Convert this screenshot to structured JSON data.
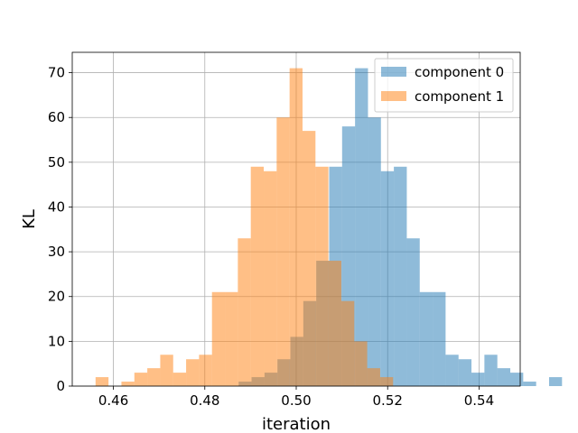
{
  "chart_data": {
    "type": "histogram",
    "title": "",
    "xlabel": "iteration",
    "ylabel": "KL",
    "xlim": [
      0.451,
      0.549
    ],
    "ylim": [
      0,
      74.55
    ],
    "x_ticks": [
      0.46,
      0.48,
      0.5,
      0.52,
      0.54
    ],
    "x_tick_labels": [
      "0.46",
      "0.48",
      "0.50",
      "0.52",
      "0.54"
    ],
    "y_ticks": [
      0,
      10,
      20,
      30,
      40,
      50,
      60,
      70
    ],
    "y_tick_labels": [
      "0",
      "10",
      "20",
      "30",
      "40",
      "50",
      "60",
      "70"
    ],
    "grid": true,
    "legend_position": "top-right",
    "series": [
      {
        "name": "component 0",
        "color": "#1f77b4",
        "alpha": 0.5,
        "bin_start": 0.4874,
        "bin_width": 0.00283,
        "counts": [
          1,
          2,
          3,
          6,
          11,
          19,
          28,
          49,
          58,
          71,
          60,
          48,
          49,
          33,
          21,
          21,
          7,
          6,
          3,
          7,
          4,
          3,
          1,
          0,
          2
        ]
      },
      {
        "name": "component 1",
        "color": "#ff7f0e",
        "alpha": 0.5,
        "bin_start": 0.4561,
        "bin_width": 0.00283,
        "counts": [
          2,
          0,
          1,
          3,
          4,
          7,
          3,
          6,
          7,
          21,
          21,
          33,
          49,
          48,
          60,
          71,
          57,
          49,
          28,
          19,
          10,
          4,
          2
        ]
      }
    ]
  }
}
